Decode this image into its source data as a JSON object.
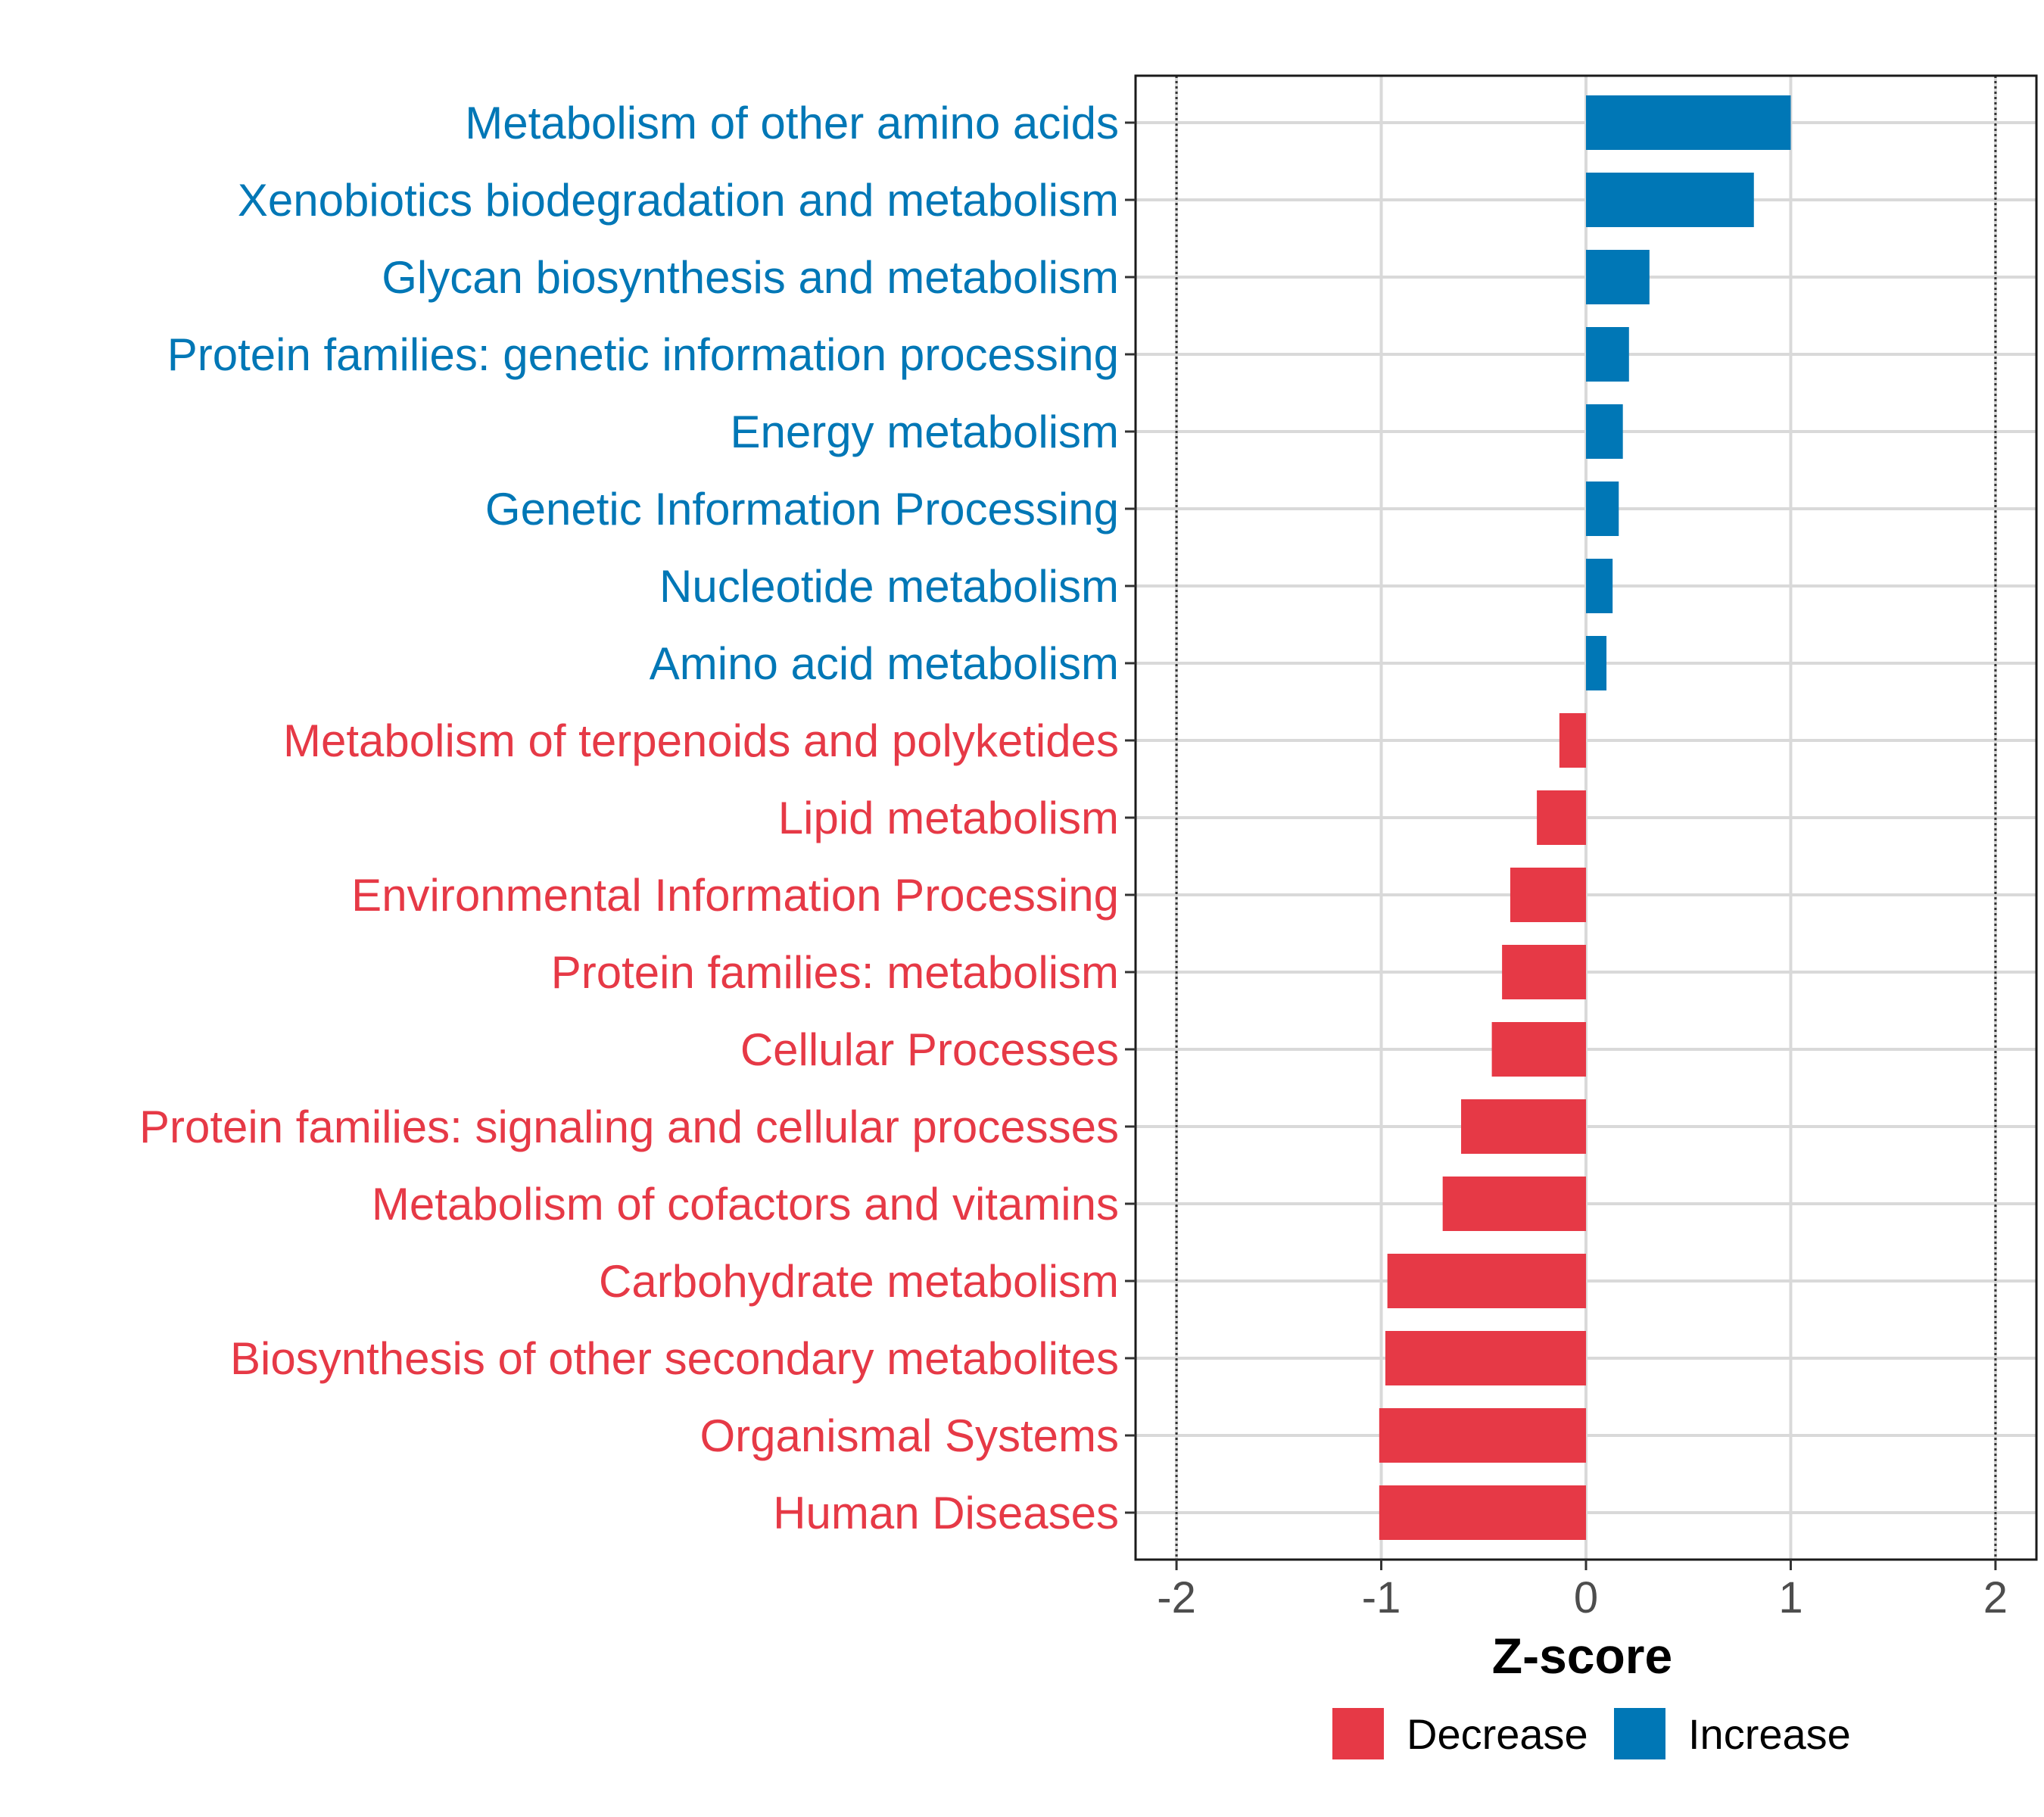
{
  "chart_data": {
    "type": "bar",
    "orientation": "horizontal",
    "title": "",
    "xlabel": "Z-score",
    "ylabel": "",
    "xlim": [
      -2.2,
      2.2
    ],
    "x_ticks": [
      -2,
      -1,
      0,
      1,
      2
    ],
    "x_tick_labels": [
      "-2",
      "-1",
      "0",
      "1",
      "2"
    ],
    "reference_lines": [
      -2,
      2
    ],
    "grid": true,
    "legend_position": "bottom",
    "colors": {
      "Decrease": "#e63946",
      "Increase": "#0077b6"
    },
    "categories": [
      "Metabolism of other amino acids",
      "Xenobiotics biodegradation and metabolism",
      "Glycan biosynthesis and metabolism",
      "Protein families: genetic information processing",
      "Energy metabolism",
      "Genetic Information Processing",
      "Nucleotide metabolism",
      "Amino acid metabolism",
      "Metabolism of terpenoids and polyketides",
      "Lipid metabolism",
      "Environmental Information Processing",
      "Protein families: metabolism",
      "Cellular Processes",
      "Protein families: signaling and cellular processes",
      "Metabolism of cofactors and vitamins",
      "Carbohydrate metabolism",
      "Biosynthesis of other secondary metabolites",
      "Organismal Systems",
      "Human Diseases"
    ],
    "values": [
      1.0,
      0.82,
      0.31,
      0.21,
      0.18,
      0.16,
      0.13,
      0.1,
      -0.13,
      -0.24,
      -0.37,
      -0.41,
      -0.46,
      -0.61,
      -0.7,
      -0.97,
      -0.98,
      -1.01,
      -1.01
    ],
    "groups": [
      "Increase",
      "Increase",
      "Increase",
      "Increase",
      "Increase",
      "Increase",
      "Increase",
      "Increase",
      "Decrease",
      "Decrease",
      "Decrease",
      "Decrease",
      "Decrease",
      "Decrease",
      "Decrease",
      "Decrease",
      "Decrease",
      "Decrease",
      "Decrease"
    ],
    "legend": [
      "Decrease",
      "Increase"
    ]
  }
}
